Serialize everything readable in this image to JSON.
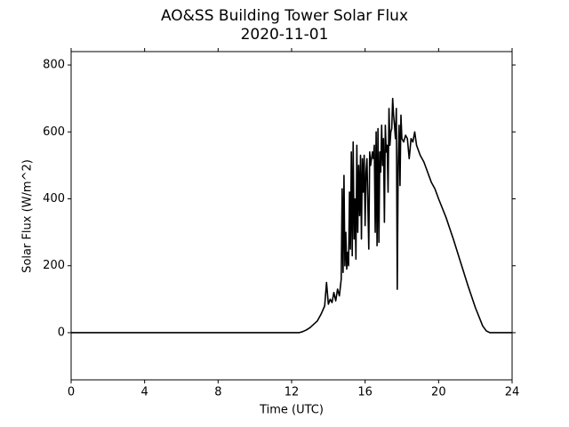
{
  "chart_data": {
    "type": "line",
    "title": "AO&SS Building Tower Solar Flux",
    "subtitle": "2020-11-01",
    "x_label": "Time (UTC)",
    "y_label": "Solar Flux (W/m^2)",
    "xlim": [
      0,
      24
    ],
    "xticks": [
      0,
      4,
      8,
      12,
      16,
      20,
      24
    ],
    "ylim": [
      -141,
      840
    ],
    "yticks": [
      0,
      200,
      400,
      600,
      800
    ],
    "x": [
      0,
      12.4,
      12.6,
      12.8,
      13.0,
      13.2,
      13.4,
      13.6,
      13.8,
      13.9,
      14.0,
      14.1,
      14.2,
      14.3,
      14.4,
      14.5,
      14.6,
      14.7,
      14.75,
      14.8,
      14.85,
      14.9,
      14.95,
      15.0,
      15.05,
      15.1,
      15.15,
      15.2,
      15.25,
      15.3,
      15.35,
      15.4,
      15.45,
      15.5,
      15.55,
      15.6,
      15.65,
      15.7,
      15.75,
      15.8,
      15.85,
      15.9,
      15.95,
      16.0,
      16.05,
      16.1,
      16.2,
      16.25,
      16.3,
      16.4,
      16.45,
      16.5,
      16.55,
      16.6,
      16.65,
      16.7,
      16.75,
      16.8,
      16.85,
      16.9,
      16.95,
      17.0,
      17.05,
      17.1,
      17.15,
      17.2,
      17.25,
      17.3,
      17.35,
      17.4,
      17.45,
      17.5,
      17.55,
      17.6,
      17.65,
      17.7,
      17.75,
      17.8,
      17.85,
      17.9,
      17.95,
      18.0,
      18.1,
      18.2,
      18.3,
      18.4,
      18.5,
      18.6,
      18.7,
      18.8,
      19.0,
      19.2,
      19.4,
      19.6,
      19.8,
      20.0,
      20.4,
      20.8,
      21.2,
      21.6,
      22.0,
      22.4,
      22.6,
      22.8,
      24
    ],
    "series": [
      {
        "name": "Solar Flux",
        "color": "#000000",
        "values": [
          0,
          0,
          3,
          8,
          15,
          25,
          35,
          55,
          80,
          150,
          85,
          100,
          90,
          120,
          95,
          130,
          110,
          160,
          430,
          180,
          470,
          200,
          300,
          190,
          240,
          200,
          420,
          250,
          540,
          230,
          570,
          280,
          400,
          220,
          560,
          300,
          500,
          350,
          530,
          280,
          520,
          420,
          530,
          320,
          480,
          520,
          250,
          540,
          500,
          540,
          520,
          560,
          300,
          600,
          260,
          610,
          270,
          540,
          480,
          620,
          500,
          580,
          330,
          620,
          540,
          560,
          420,
          670,
          560,
          600,
          610,
          700,
          650,
          620,
          580,
          670,
          130,
          500,
          620,
          440,
          650,
          580,
          570,
          590,
          580,
          520,
          580,
          570,
          600,
          560,
          530,
          510,
          480,
          450,
          430,
          400,
          345,
          280,
          210,
          140,
          75,
          20,
          5,
          0,
          0
        ]
      }
    ]
  }
}
